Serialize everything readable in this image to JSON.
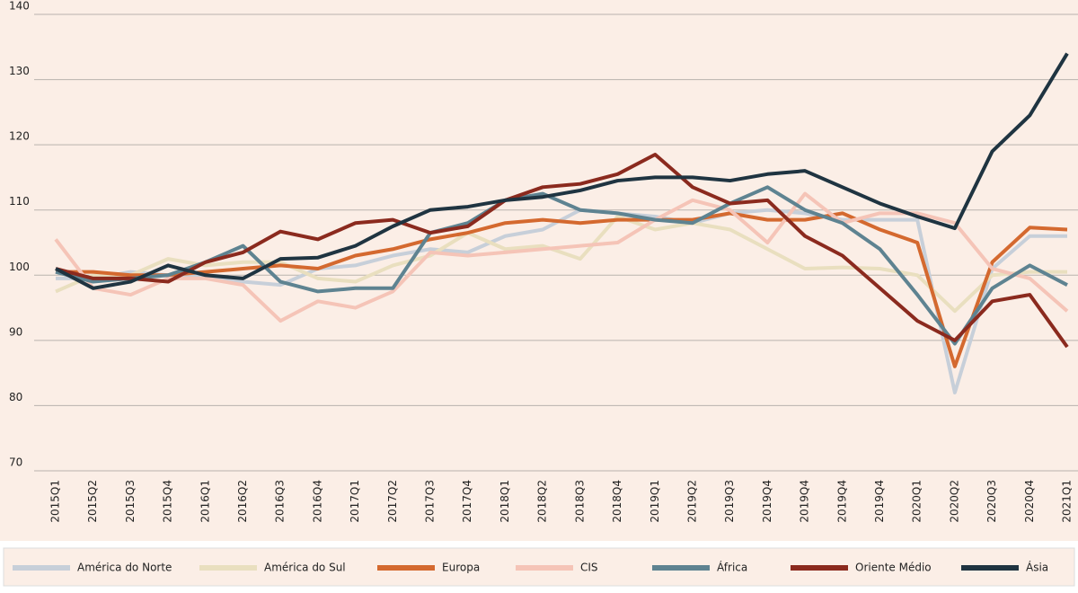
{
  "chart_data": {
    "type": "line",
    "categories": [
      "2015Q1",
      "2015Q2",
      "2015Q3",
      "2015Q4",
      "2016Q1",
      "2016Q2",
      "2016Q3",
      "2016Q4",
      "2017Q1",
      "2017Q2",
      "2017Q3",
      "2017Q4",
      "2018Q1",
      "2018Q2",
      "2018Q3",
      "2018Q4",
      "2019Q1",
      "2019Q2",
      "2019Q3",
      "2019Q4",
      "2019Q4",
      "2019Q4",
      "2019Q4",
      "2020Q1",
      "2020Q2",
      "2020Q3",
      "2020Q4",
      "2021Q1"
    ],
    "ylim": [
      70,
      140
    ],
    "yticks": [
      70,
      80,
      90,
      100,
      110,
      120,
      130,
      140
    ],
    "grid": true,
    "legend": "bottom",
    "series": [
      {
        "name": "América do Norte",
        "color": "#c7cfd9",
        "values": [
          99.5,
          99.5,
          100.5,
          100,
          100,
          99,
          98.5,
          101,
          101.5,
          103,
          104,
          103.5,
          106,
          107,
          110,
          109.5,
          109,
          108,
          109.5,
          110,
          109.5,
          108.5,
          108.5,
          108.5,
          82,
          101,
          106,
          106
        ]
      },
      {
        "name": "América do Sul",
        "color": "#e9dfbf",
        "values": [
          97.5,
          100,
          100,
          102.5,
          101.5,
          102,
          102,
          99.5,
          99,
          101.5,
          103,
          106.5,
          104,
          104.5,
          102.5,
          109,
          107,
          108,
          107,
          104,
          101,
          101.2,
          101,
          100,
          94.5,
          100,
          100.5,
          100.5
        ]
      },
      {
        "name": "Europa",
        "color": "#d4692f",
        "values": [
          100.5,
          100.5,
          100,
          100,
          100.5,
          101,
          101.5,
          101,
          103,
          104,
          105.5,
          106.5,
          108,
          108.5,
          108,
          108.5,
          108.5,
          108.5,
          109.5,
          108.5,
          108.5,
          109.5,
          107,
          105,
          86,
          102,
          107.3,
          107
        ]
      },
      {
        "name": "CIS",
        "color": "#f5c4b7",
        "values": [
          105.5,
          98,
          97,
          99.5,
          99.5,
          98.5,
          93,
          96,
          95,
          97.5,
          103.5,
          103,
          103.5,
          104,
          104.5,
          105,
          108.5,
          111.5,
          110,
          105,
          112.5,
          108,
          109.5,
          109.5,
          108,
          101,
          99.5,
          94.5
        ]
      },
      {
        "name": "África",
        "color": "#5e8391",
        "values": [
          100.5,
          99,
          99.5,
          100,
          102,
          104.5,
          99,
          97.5,
          98,
          98,
          106.5,
          108,
          111.5,
          112.5,
          110,
          109.5,
          108.5,
          108,
          111,
          113.5,
          110,
          108,
          104,
          97,
          89.5,
          98,
          101.5,
          98.5
        ]
      },
      {
        "name": "Oriente Médio",
        "color": "#8b2a1e",
        "values": [
          101,
          99.5,
          99.5,
          99,
          102,
          103.5,
          106.7,
          105.5,
          108,
          108.5,
          106.5,
          107.5,
          111.5,
          113.5,
          114,
          115.5,
          118.5,
          113.5,
          111,
          111.5,
          106,
          103,
          98,
          93,
          90,
          96,
          97,
          89
        ]
      },
      {
        "name": "Ásia",
        "color": "#1f3441",
        "values": [
          101,
          98,
          99,
          101.5,
          100,
          99.5,
          102.5,
          102.7,
          104.5,
          107.5,
          110,
          110.5,
          111.5,
          112,
          113,
          114.5,
          115,
          115,
          114.5,
          115.5,
          116,
          113.5,
          111,
          109,
          107.2,
          119,
          124.5,
          134
        ]
      }
    ]
  }
}
